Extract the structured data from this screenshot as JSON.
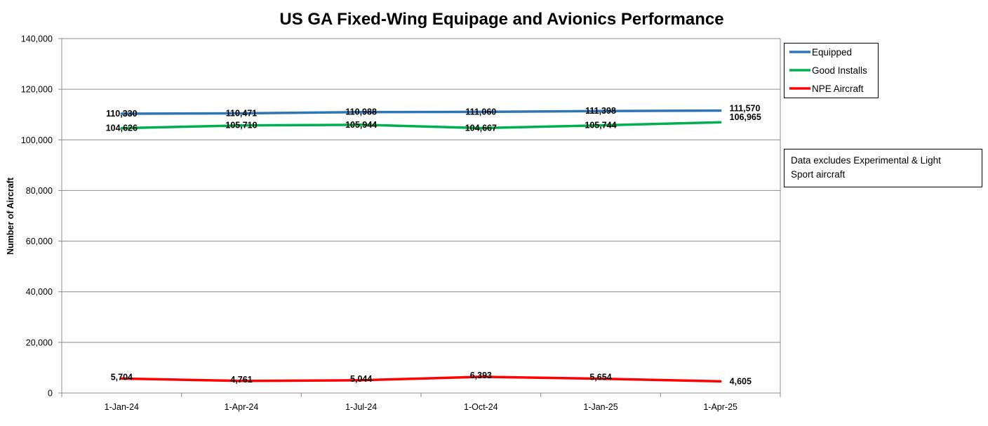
{
  "chart_data": {
    "type": "line",
    "title": "US GA Fixed-Wing Equipage and Avionics Performance",
    "xlabel": "",
    "ylabel": "Number of Aircraft",
    "categories": [
      "1-Jan-24",
      "1-Apr-24",
      "1-Jul-24",
      "1-Oct-24",
      "1-Jan-25",
      "1-Apr-25"
    ],
    "ylim": [
      0,
      140000
    ],
    "yticks": [
      0,
      20000,
      40000,
      60000,
      80000,
      100000,
      120000,
      140000
    ],
    "ytick_labels": [
      "0",
      "20,000",
      "40,000",
      "60,000",
      "80,000",
      "100,000",
      "120,000",
      "140,000"
    ],
    "grid": true,
    "legend_position": "top-right",
    "series": [
      {
        "name": "Equipped",
        "color": "#2e75b6",
        "values": [
          110330,
          110471,
          110988,
          111060,
          111398,
          111570
        ],
        "labels": [
          "110,330",
          "110,471",
          "110,988",
          "111,060",
          "111,398",
          "111,570"
        ]
      },
      {
        "name": "Good Installs",
        "color": "#00b050",
        "values": [
          104626,
          105710,
          105944,
          104667,
          105744,
          106965
        ],
        "labels": [
          "104,626",
          "105,710",
          "105,944",
          "104,667",
          "105,744",
          "106,965"
        ]
      },
      {
        "name": "NPE Aircraft",
        "color": "#ff0000",
        "values": [
          5704,
          4761,
          5044,
          6393,
          5654,
          4605
        ],
        "labels": [
          "5,704",
          "4,761",
          "5,044",
          "6,393",
          "5,654",
          "4,605"
        ]
      }
    ],
    "annotation": "Data excludes Experimental & Light Sport aircraft",
    "annotation_lines": [
      "Data excludes Experimental & Light",
      "Sport aircraft"
    ]
  }
}
